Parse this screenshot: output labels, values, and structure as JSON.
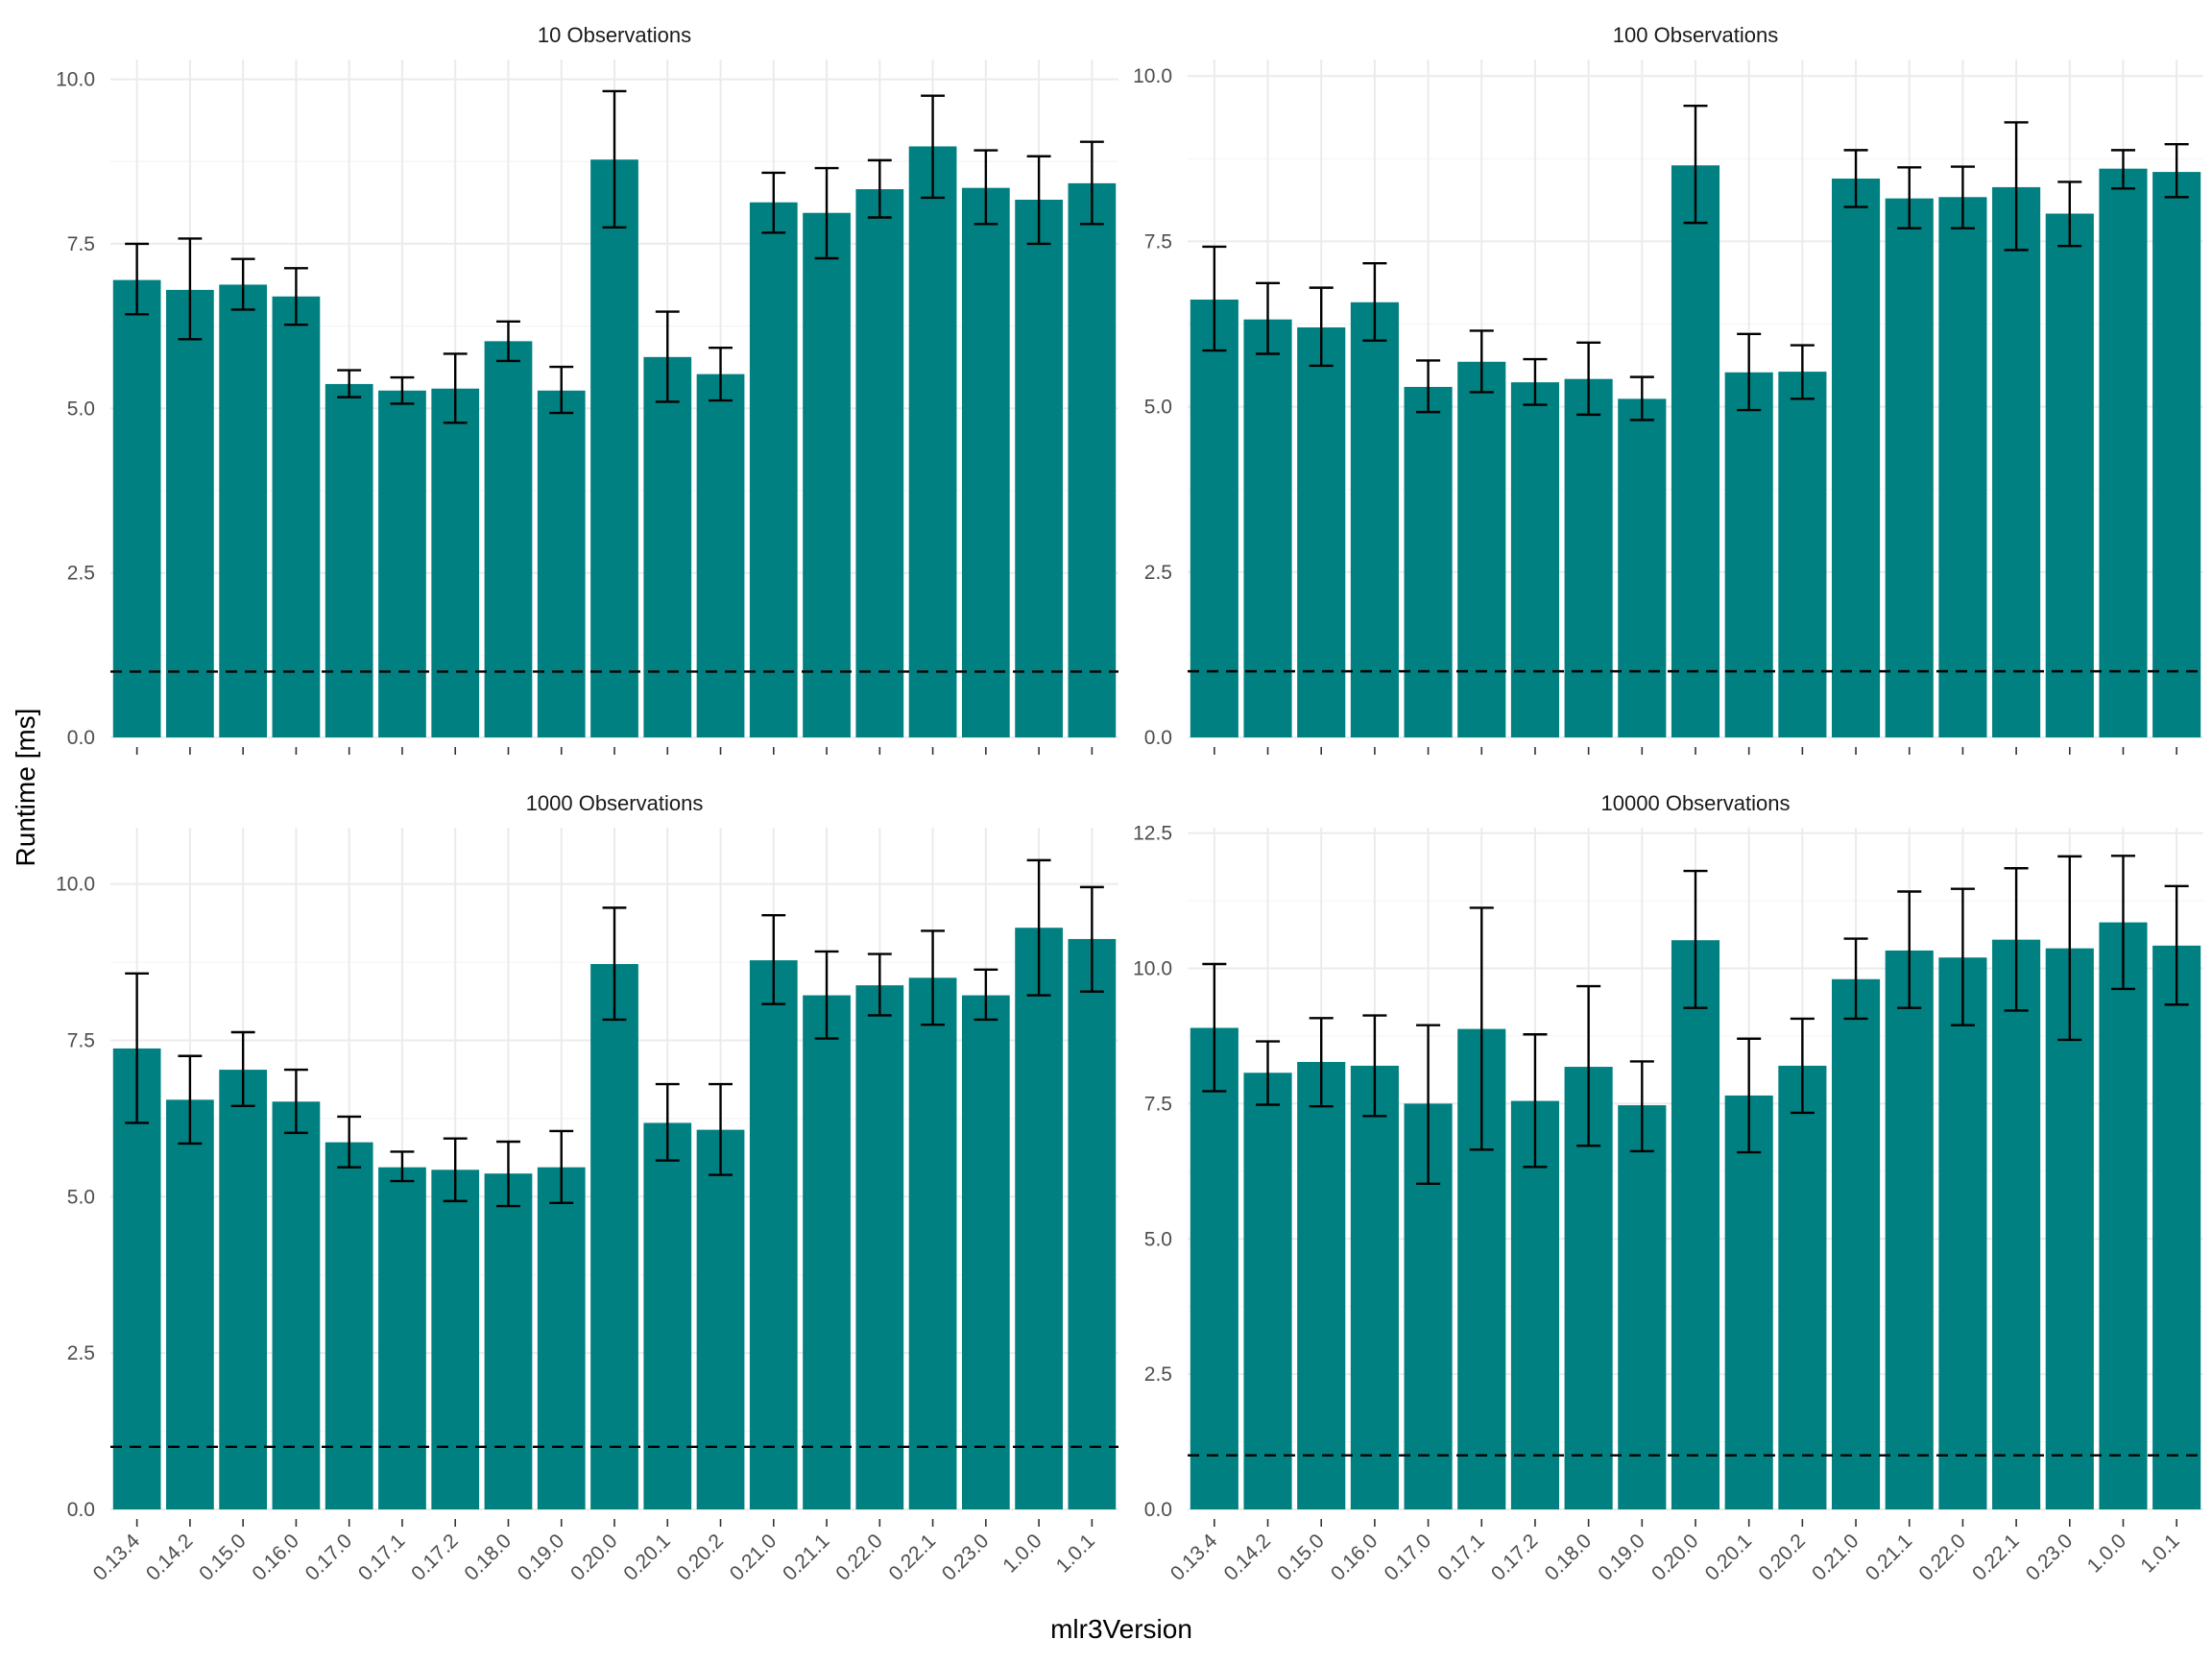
{
  "chart_data": {
    "type": "bar",
    "xlabel": "mlr3Version",
    "ylabel": "Runtime [ms]",
    "bar_color": "#008080",
    "reference_line": {
      "y": 1,
      "style": "dashed",
      "color": "#000000"
    },
    "grid": true,
    "categories": [
      "0.13.4",
      "0.14.2",
      "0.15.0",
      "0.16.0",
      "0.17.0",
      "0.17.1",
      "0.17.2",
      "0.18.0",
      "0.19.0",
      "0.20.0",
      "0.20.1",
      "0.20.2",
      "0.21.0",
      "0.21.1",
      "0.22.0",
      "0.22.1",
      "0.23.0",
      "1.0.0",
      "1.0.1"
    ],
    "panels": [
      {
        "title": "10 Observations",
        "ylim": [
          0,
          10.3
        ],
        "yticks": [
          0,
          2.5,
          5,
          7.5,
          10
        ],
        "ytick_labels": [
          "0.0",
          "2.5",
          "5.0",
          "7.5",
          "10.0"
        ],
        "values": [
          6.95,
          6.8,
          6.88,
          6.7,
          5.37,
          5.27,
          5.3,
          6.02,
          5.27,
          8.78,
          5.78,
          5.52,
          8.13,
          7.97,
          8.33,
          8.98,
          8.35,
          8.17,
          8.42
        ],
        "error_low": [
          6.43,
          6.05,
          6.5,
          6.27,
          5.17,
          5.07,
          4.78,
          5.72,
          4.93,
          7.75,
          5.1,
          5.12,
          7.67,
          7.28,
          7.9,
          8.2,
          7.8,
          7.5,
          7.8
        ],
        "error_high": [
          7.5,
          7.58,
          7.27,
          7.13,
          5.58,
          5.47,
          5.83,
          6.32,
          5.63,
          9.82,
          6.47,
          5.92,
          8.58,
          8.65,
          8.77,
          9.75,
          8.92,
          8.83,
          9.05
        ]
      },
      {
        "title": "100 Observations",
        "ylim": [
          0,
          10.25
        ],
        "yticks": [
          0,
          2.5,
          5,
          7.5,
          10
        ],
        "ytick_labels": [
          "0.0",
          "2.5",
          "5.0",
          "7.5",
          "10.0"
        ],
        "values": [
          6.62,
          6.32,
          6.2,
          6.58,
          5.3,
          5.68,
          5.37,
          5.42,
          5.12,
          8.65,
          5.52,
          5.53,
          8.45,
          8.15,
          8.17,
          8.32,
          7.92,
          8.6,
          8.55
        ],
        "error_low": [
          5.85,
          5.8,
          5.62,
          6.0,
          4.92,
          5.22,
          5.03,
          4.88,
          4.8,
          7.78,
          4.95,
          5.12,
          8.02,
          7.7,
          7.7,
          7.37,
          7.43,
          8.3,
          8.17
        ],
        "error_high": [
          7.42,
          6.87,
          6.8,
          7.17,
          5.7,
          6.15,
          5.72,
          5.97,
          5.45,
          9.55,
          6.1,
          5.93,
          8.88,
          8.62,
          8.63,
          9.3,
          8.4,
          8.88,
          8.97
        ]
      },
      {
        "title": "1000 Observations",
        "ylim": [
          0,
          10.9
        ],
        "yticks": [
          0,
          2.5,
          5,
          7.5,
          10
        ],
        "ytick_labels": [
          "0.0",
          "2.5",
          "5.0",
          "7.5",
          "10.0"
        ],
        "values": [
          7.37,
          6.55,
          7.03,
          6.52,
          5.87,
          5.47,
          5.43,
          5.37,
          5.47,
          8.72,
          6.18,
          6.07,
          8.78,
          8.22,
          8.38,
          8.5,
          8.22,
          9.3,
          9.12
        ],
        "error_low": [
          6.18,
          5.85,
          6.45,
          6.02,
          5.47,
          5.25,
          4.93,
          4.85,
          4.9,
          7.83,
          5.58,
          5.35,
          8.08,
          7.53,
          7.9,
          7.75,
          7.83,
          8.22,
          8.28
        ],
        "error_high": [
          8.57,
          7.25,
          7.63,
          7.03,
          6.28,
          5.72,
          5.93,
          5.88,
          6.05,
          9.62,
          6.8,
          6.8,
          9.5,
          8.92,
          8.88,
          9.25,
          8.63,
          10.38,
          9.95
        ]
      },
      {
        "title": "10000 Observations",
        "ylim": [
          0,
          12.6
        ],
        "yticks": [
          0,
          2.5,
          5,
          7.5,
          10,
          12.5
        ],
        "ytick_labels": [
          "0.0",
          "2.5",
          "5.0",
          "7.5",
          "10.0",
          "12.5"
        ],
        "values": [
          8.9,
          8.07,
          8.27,
          8.2,
          7.5,
          8.88,
          7.55,
          8.18,
          7.47,
          10.52,
          7.65,
          8.2,
          9.8,
          10.33,
          10.2,
          10.53,
          10.37,
          10.85,
          10.42
        ],
        "error_low": [
          7.73,
          7.48,
          7.45,
          7.27,
          6.02,
          6.65,
          6.33,
          6.72,
          6.62,
          9.27,
          6.6,
          7.33,
          9.07,
          9.27,
          8.95,
          9.22,
          8.68,
          9.62,
          9.33
        ],
        "error_high": [
          10.08,
          8.65,
          9.08,
          9.13,
          8.95,
          11.12,
          8.78,
          9.67,
          8.28,
          11.8,
          8.7,
          9.07,
          10.55,
          11.42,
          11.47,
          11.85,
          12.07,
          12.08,
          11.52
        ]
      }
    ]
  }
}
